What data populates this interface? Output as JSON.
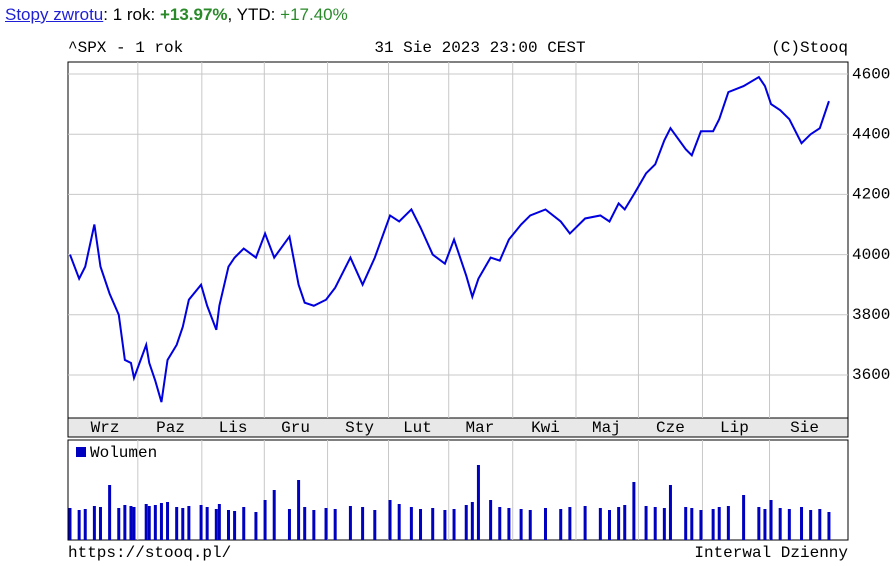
{
  "header": {
    "link": "Stopy zwrotu",
    "sep1": ": 1 rok: ",
    "return_1y": "+13.97%",
    "sep2": ", YTD: ",
    "return_ytd": "+17.40%"
  },
  "chart_data": [
    {
      "type": "line",
      "title": "^SPX - 1 rok",
      "date": "31 Sie 2023 23:00 CEST",
      "copyright": "(C)Stooq",
      "x": [
        0,
        3,
        5,
        8,
        10,
        13,
        16,
        18,
        20,
        21,
        25,
        26,
        28,
        30,
        32,
        35,
        37,
        39,
        43,
        45,
        48,
        49,
        52,
        54,
        57,
        61,
        64,
        67,
        72,
        75,
        77,
        80,
        84,
        87,
        92,
        96,
        100,
        105,
        108,
        112,
        115,
        119,
        123,
        126,
        130,
        132,
        134,
        138,
        141,
        144,
        148,
        151,
        156,
        161,
        164,
        169,
        174,
        177,
        180,
        182,
        185,
        189,
        192,
        195,
        197,
        202,
        204,
        207,
        211,
        213,
        216,
        221,
        226,
        228,
        230,
        233,
        236,
        240,
        243,
        246,
        249
      ],
      "series": [
        {
          "color": "#0000e0",
          "values": [
            4000,
            3920,
            3960,
            4100,
            3960,
            3870,
            3800,
            3650,
            3640,
            3590,
            3700,
            3640,
            3580,
            3510,
            3650,
            3700,
            3760,
            3850,
            3900,
            3830,
            3750,
            3830,
            3960,
            3990,
            4020,
            3990,
            4070,
            3990,
            4060,
            3900,
            3840,
            3830,
            3850,
            3890,
            3990,
            3900,
            3990,
            4130,
            4110,
            4150,
            4090,
            4000,
            3970,
            4050,
            3930,
            3860,
            3920,
            3990,
            3980,
            4050,
            4100,
            4130,
            4150,
            4110,
            4070,
            4120,
            4130,
            4110,
            4170,
            4150,
            4200,
            4270,
            4300,
            4380,
            4420,
            4350,
            4330,
            4410,
            4410,
            4450,
            4540,
            4560,
            4590,
            4560,
            4500,
            4480,
            4450,
            4370,
            4400,
            4420,
            4510
          ]
        }
      ],
      "xlim": [
        0,
        250
      ],
      "ylim": [
        3457,
        4640
      ],
      "xticks": [
        {
          "value": 11.5,
          "label": "Wrz"
        },
        {
          "value": 33,
          "label": "Paz"
        },
        {
          "value": 53.5,
          "label": "Lis"
        },
        {
          "value": 74,
          "label": "Gru"
        },
        {
          "value": 95,
          "label": "Sty"
        },
        {
          "value": 114,
          "label": "Lut"
        },
        {
          "value": 134.5,
          "label": "Mar"
        },
        {
          "value": 156,
          "label": "Kwi"
        },
        {
          "value": 176,
          "label": "Maj"
        },
        {
          "value": 197,
          "label": "Cze"
        },
        {
          "value": 218,
          "label": "Lip"
        },
        {
          "value": 241,
          "label": "Sie"
        }
      ],
      "yticks": [
        3600,
        3800,
        4000,
        4200,
        4400,
        4600
      ],
      "grid": true
    },
    {
      "type": "bar",
      "x": [
        0,
        3,
        5,
        8,
        10,
        13,
        16,
        18,
        20,
        21,
        25,
        26,
        28,
        30,
        32,
        35,
        37,
        39,
        43,
        45,
        48,
        49,
        52,
        54,
        57,
        61,
        64,
        67,
        72,
        75,
        77,
        80,
        84,
        87,
        92,
        96,
        100,
        105,
        108,
        112,
        115,
        119,
        123,
        126,
        130,
        132,
        134,
        138,
        141,
        144,
        148,
        151,
        156,
        161,
        164,
        169,
        174,
        177,
        180,
        182,
        185,
        189,
        192,
        195,
        197,
        202,
        204,
        207,
        211,
        213,
        216,
        221,
        226,
        228,
        230,
        233,
        236,
        240,
        243,
        246,
        249
      ],
      "series": [
        {
          "name": "Wolumen",
          "color": "#0000c0",
          "values": [
            32,
            30,
            31,
            34,
            33,
            55,
            32,
            35,
            34,
            33,
            36,
            34,
            35,
            37,
            38,
            33,
            32,
            34,
            35,
            33,
            31,
            36,
            30,
            29,
            33,
            28,
            40,
            50,
            31,
            60,
            33,
            30,
            32,
            31,
            34,
            33,
            30,
            40,
            36,
            33,
            31,
            32,
            30,
            31,
            35,
            38,
            75,
            40,
            33,
            32,
            31,
            30,
            32,
            31,
            33,
            34,
            32,
            30,
            33,
            35,
            58,
            34,
            33,
            32,
            55,
            33,
            32,
            30,
            31,
            33,
            34,
            45,
            33,
            31,
            40,
            32,
            31,
            33,
            30,
            31,
            28
          ]
        }
      ],
      "xlim": [
        0,
        250
      ],
      "ylim": [
        0,
        100
      ]
    }
  ],
  "footer": {
    "url": "https://stooq.pl/",
    "interval": "Interwal Dzienny"
  }
}
